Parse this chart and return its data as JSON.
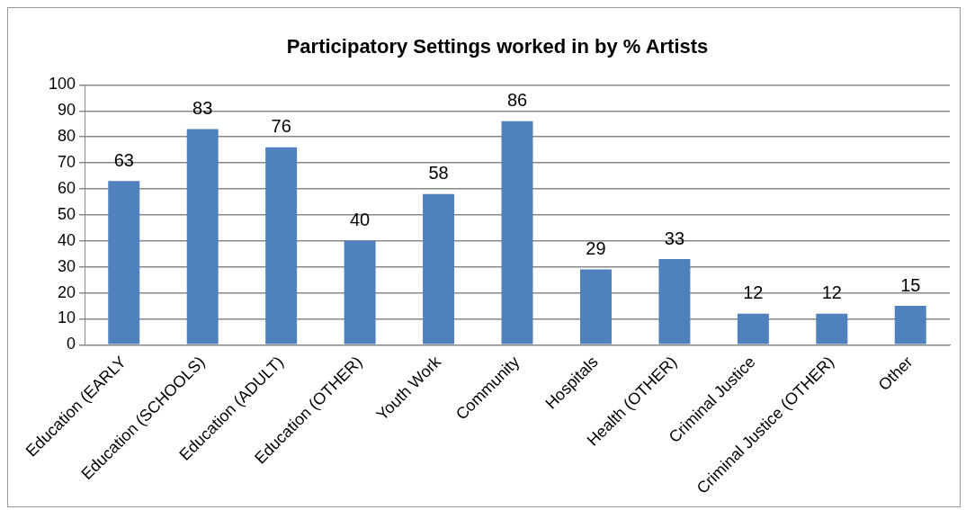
{
  "chart_data": {
    "type": "bar",
    "title": "Participatory Settings worked in by % Artists",
    "categories": [
      "Education (EARLY",
      "Education (SCHOOLS)",
      "Education (ADULT)",
      "Education (OTHER)",
      "Youth Work",
      "Community",
      "Hospitals",
      "Health (OTHER)",
      "Criminal Justice",
      "Criminal Justice (OTHER)",
      "Other"
    ],
    "values": [
      63,
      83,
      76,
      40,
      58,
      86,
      29,
      33,
      12,
      12,
      15
    ],
    "color": "#4f81bd",
    "ylim": [
      0,
      100
    ],
    "yticks": [
      0,
      10,
      20,
      30,
      40,
      50,
      60,
      70,
      80,
      90,
      100
    ],
    "grid": "y",
    "legend": false,
    "data_labels": true
  }
}
